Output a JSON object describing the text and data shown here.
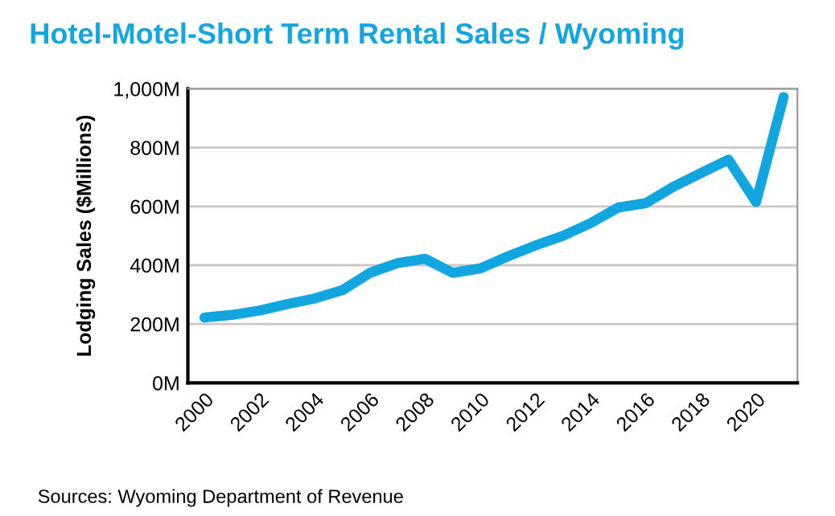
{
  "chart_data": {
    "type": "line",
    "title": "Hotel-Motel-Short Term Rental Sales / Wyoming",
    "ylabel": "Lodging Sales ($Millions)",
    "x": [
      2000,
      2001,
      2002,
      2003,
      2004,
      2005,
      2006,
      2007,
      2008,
      2009,
      2010,
      2011,
      2012,
      2013,
      2014,
      2015,
      2016,
      2017,
      2018,
      2019,
      2020,
      2021
    ],
    "series": [
      {
        "color": "#12a6e0",
        "values": [
          222,
          231,
          246,
          268,
          287,
          315,
          374,
          407,
          422,
          374,
          389,
          430,
          467,
          500,
          543,
          596,
          611,
          667,
          713,
          759,
          615,
          972
        ]
      }
    ],
    "xlim": [
      1999.4,
      2021.5
    ],
    "xticks": [
      2000,
      2002,
      2004,
      2006,
      2008,
      2010,
      2012,
      2014,
      2016,
      2018,
      2020
    ],
    "ylim": [
      0,
      1000
    ],
    "yticks": [
      {
        "value": 0,
        "label": "0M"
      },
      {
        "value": 200,
        "label": "200M"
      },
      {
        "value": 400,
        "label": "400M"
      },
      {
        "value": 600,
        "label": "600M"
      },
      {
        "value": 800,
        "label": "800M"
      },
      {
        "value": 1000,
        "label": "1,000M"
      }
    ],
    "grid": "y",
    "legend": false,
    "marker": "none",
    "line_style": "solid",
    "annotations": [
      "Sources: Wyoming Department of Revenue"
    ]
  }
}
